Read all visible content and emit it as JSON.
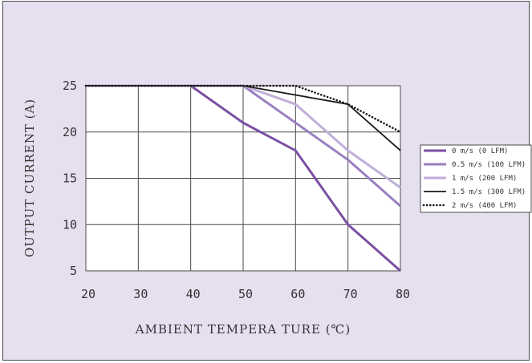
{
  "chart_data": {
    "type": "line",
    "title": "",
    "xlabel": "AMBIENT  TEMPERA TURE  (℃)",
    "ylabel": "OUTPUT CURRENT (A)",
    "x": [
      20,
      30,
      40,
      50,
      60,
      70,
      80
    ],
    "xlim": [
      20,
      80
    ],
    "ylim": [
      5,
      25
    ],
    "xticks": [
      "20",
      "30",
      "40",
      "50",
      "60",
      "70",
      "80"
    ],
    "yticks": [
      "5",
      "10",
      "15",
      "20",
      "25"
    ],
    "grid": true,
    "legend_position": "right",
    "series": [
      {
        "name": "0 m/s (0 LFM)",
        "color": "#7b4fa3",
        "style": "solid",
        "width": 3,
        "points": [
          [
            20,
            25
          ],
          [
            40,
            25
          ],
          [
            50,
            21
          ],
          [
            60,
            18
          ],
          [
            70,
            10
          ],
          [
            80,
            5
          ]
        ]
      },
      {
        "name": "0.5 m/s (100 LFM)",
        "color": "#9a7fc0",
        "style": "solid",
        "width": 3,
        "points": [
          [
            20,
            25
          ],
          [
            50,
            25
          ],
          [
            60,
            21
          ],
          [
            70,
            17
          ],
          [
            80,
            12
          ]
        ]
      },
      {
        "name": "1 m/s (200 LFM)",
        "color": "#bfaed8",
        "style": "solid",
        "width": 3,
        "points": [
          [
            20,
            25
          ],
          [
            50,
            25
          ],
          [
            60,
            23
          ],
          [
            70,
            18
          ],
          [
            80,
            14
          ]
        ]
      },
      {
        "name": "1.5 m/s (300 LFM)",
        "color": "#1a1a1a",
        "style": "solid",
        "width": 1.8,
        "points": [
          [
            20,
            25
          ],
          [
            50,
            25
          ],
          [
            70,
            23
          ],
          [
            80,
            18
          ]
        ]
      },
      {
        "name": "2 m/s (400 LFM)",
        "color": "#1a1a1a",
        "style": "dotted",
        "width": 2.6,
        "points": [
          [
            20,
            25
          ],
          [
            60,
            25
          ],
          [
            70,
            23
          ],
          [
            80,
            20
          ]
        ]
      }
    ]
  }
}
